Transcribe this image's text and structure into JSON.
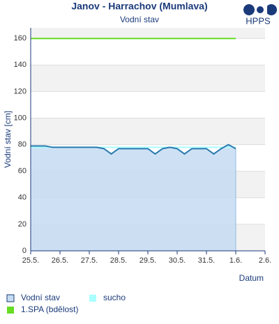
{
  "logo": "HPPS",
  "chart_data": {
    "type": "line",
    "title": "Janov - Harrachov (Mumlava)",
    "subtitle": "Vodní stav",
    "y_label": "Vodní stav [cm]",
    "x_label": "Datum",
    "x": [
      0,
      0.25,
      0.5,
      0.75,
      1,
      1.25,
      1.5,
      1.75,
      2,
      2.25,
      2.5,
      2.75,
      3,
      3.25,
      3.5,
      3.75,
      4,
      4.25,
      4.5,
      4.75,
      5,
      5.25,
      5.5,
      5.75,
      6,
      6.25,
      6.5,
      6.75,
      7
    ],
    "series": [
      {
        "name": "Vodní stav",
        "color": "#2a7ab0",
        "fill": "#c6dcf2",
        "values": [
          79,
          79,
          79,
          78,
          78,
          78,
          78,
          78,
          78,
          78,
          77,
          73,
          77,
          77,
          77,
          77,
          77,
          73,
          77,
          78,
          77,
          73,
          77,
          77,
          77,
          73,
          77,
          80,
          77
        ]
      },
      {
        "name": "sucho",
        "color": "#aaffff",
        "values": [
          78,
          78,
          78,
          78,
          78,
          78,
          78,
          78,
          78,
          78,
          78,
          78,
          78,
          78,
          78,
          78,
          78,
          78,
          78,
          78,
          78,
          78,
          78,
          78,
          78,
          78,
          78,
          78,
          78
        ]
      },
      {
        "name": "1.SPA (bdělost)",
        "color": "#66dd22",
        "values": [
          160,
          160,
          160,
          160,
          160,
          160,
          160,
          160,
          160,
          160,
          160,
          160,
          160,
          160,
          160,
          160,
          160,
          160,
          160,
          160,
          160,
          160,
          160,
          160,
          160,
          160,
          160,
          160,
          160
        ]
      }
    ],
    "xlim": [
      0,
      8
    ],
    "xticks": [
      {
        "value": 0,
        "label": "25.5."
      },
      {
        "value": 1,
        "label": "26.5."
      },
      {
        "value": 2,
        "label": "27.5."
      },
      {
        "value": 3,
        "label": "28.5."
      },
      {
        "value": 4,
        "label": "29.5."
      },
      {
        "value": 5,
        "label": "30.5."
      },
      {
        "value": 6,
        "label": "31.5."
      },
      {
        "value": 7,
        "label": "1.6."
      },
      {
        "value": 8,
        "label": "2.6."
      }
    ],
    "ylim": [
      0,
      168
    ],
    "yticks": [
      0,
      20,
      40,
      60,
      80,
      100,
      120,
      140,
      160
    ],
    "grid": true
  }
}
